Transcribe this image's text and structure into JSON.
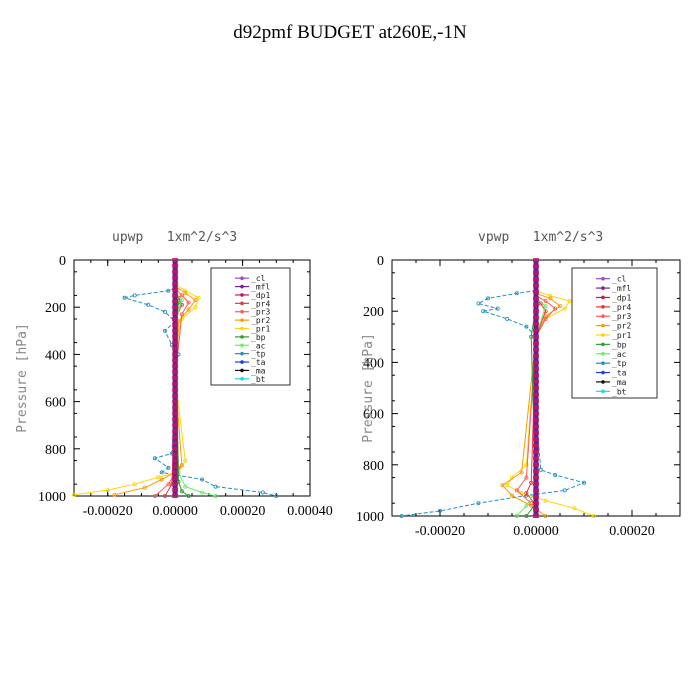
{
  "title": "d92pmf  BUDGET at260E,-1N",
  "legend_labels": [
    "_cl",
    "_mfl",
    "_dp1",
    "_pr4",
    "_pr3",
    "_pr2",
    "_pr1",
    "_bp",
    "_ac",
    "_tp",
    "_ta",
    "_ma",
    "_bt"
  ],
  "series_colors": [
    "#9b4dca",
    "#7b1fa2",
    "#c2185b",
    "#e53935",
    "#ff5a5a",
    "#ff9800",
    "#ffd600",
    "#2e9e2e",
    "#66ee66",
    "#1f8fc0",
    "#1a3fd4",
    "#111111",
    "#19d7e6"
  ],
  "chart_data": [
    {
      "type": "line",
      "title": "upwp   1xm^2/s^3",
      "ylabel": "Pressure [hPa]",
      "xlim": [
        -0.0003,
        0.0004
      ],
      "ylim": [
        0,
        1000
      ],
      "y_inverted": true,
      "xticks": [
        -0.0002,
        0.0,
        0.0002,
        0.0004
      ],
      "xtick_labels": [
        "-0.00020",
        "0.00000",
        "0.00020",
        "0.00040"
      ],
      "yticks": [
        0,
        200,
        400,
        600,
        800,
        1000
      ],
      "ytick_labels": [
        "0",
        "200",
        "400",
        "600",
        "800",
        "1000"
      ],
      "series": [
        {
          "name": "_tp",
          "x": [
            0,
            -2e-05,
            -0.00012,
            -0.00015,
            -8e-05,
            -3e-05,
            0.0,
            -3e-05,
            -1e-05,
            1e-05,
            0.0,
            0.0,
            -1e-05,
            -6e-05,
            -2e-05,
            -4e-05,
            8e-05,
            0.00012,
            0.00026,
            0.0003
          ],
          "y": [
            120,
            130,
            150,
            160,
            190,
            220,
            260,
            300,
            360,
            400,
            450,
            600,
            820,
            840,
            880,
            900,
            930,
            960,
            985,
            1000
          ]
        },
        {
          "name": "_pr1",
          "x": [
            0,
            3e-05,
            7e-05,
            6e-05,
            2e-05,
            1e-05,
            0.0,
            3e-05,
            1e-05,
            -5e-05,
            -0.00012,
            -0.0002,
            -0.0003
          ],
          "y": [
            100,
            130,
            160,
            200,
            250,
            300,
            500,
            850,
            900,
            920,
            950,
            975,
            995
          ]
        },
        {
          "name": "_pr2",
          "x": [
            0,
            3e-05,
            6e-05,
            4e-05,
            1e-05,
            0.0,
            2e-05,
            0.0,
            -4e-05,
            -9e-05,
            -0.00018
          ],
          "y": [
            110,
            140,
            170,
            210,
            260,
            500,
            870,
            900,
            930,
            965,
            995
          ]
        },
        {
          "name": "_pr3",
          "x": [
            0,
            2e-05,
            4e-05,
            2e-05,
            0.0,
            1e-05,
            -2e-05,
            -6e-05
          ],
          "y": [
            120,
            150,
            180,
            230,
            500,
            880,
            950,
            1000
          ]
        },
        {
          "name": "_pr4",
          "x": [
            0,
            1e-05,
            2e-05,
            0.0,
            0.0,
            -1e-05,
            -3e-05
          ],
          "y": [
            130,
            160,
            190,
            250,
            600,
            950,
            1000
          ]
        },
        {
          "name": "_ac",
          "x": [
            0,
            2e-05,
            1e-05,
            0.0,
            1e-05,
            3e-05,
            8e-05,
            0.00012
          ],
          "y": [
            140,
            170,
            210,
            300,
            900,
            960,
            985,
            1000
          ]
        },
        {
          "name": "_bp",
          "x": [
            0,
            1e-05,
            0.0,
            1e-05,
            2e-05,
            4e-05
          ],
          "y": [
            150,
            180,
            300,
            940,
            980,
            1000
          ]
        },
        {
          "name": "_ta",
          "x": [
            0,
            0.0,
            0.0
          ],
          "y": [
            120,
            500,
            1000
          ]
        },
        {
          "name": "_cl",
          "x": [
            0,
            0
          ],
          "y": [
            0,
            1000
          ]
        },
        {
          "name": "_mfl",
          "x": [
            0,
            0
          ],
          "y": [
            0,
            1000
          ]
        },
        {
          "name": "_dp1",
          "x": [
            0,
            0
          ],
          "y": [
            0,
            1000
          ]
        }
      ]
    },
    {
      "type": "line",
      "title": "vpwp   1xm^2/s^3",
      "ylabel": "Pressure [hPa]",
      "xlim": [
        -0.0003,
        0.0003
      ],
      "ylim": [
        0,
        1000
      ],
      "y_inverted": true,
      "xticks": [
        -0.0002,
        0.0,
        0.0002
      ],
      "xtick_labels": [
        "-0.00020",
        "0.00000",
        "0.00020"
      ],
      "yticks": [
        0,
        200,
        400,
        600,
        800,
        1000
      ],
      "ytick_labels": [
        "0",
        "200",
        "400",
        "600",
        "800",
        "1000"
      ],
      "series": [
        {
          "name": "_tp",
          "x": [
            0,
            -4e-05,
            -0.0001,
            -0.00012,
            -8e-05,
            -0.00011,
            -6e-05,
            -2e-05,
            0.0,
            0.0,
            1e-05,
            4e-05,
            0.0001,
            6e-05,
            -2e-05,
            -0.00012,
            -0.0002,
            -0.00028
          ],
          "y": [
            120,
            130,
            150,
            170,
            190,
            200,
            230,
            260,
            300,
            600,
            820,
            840,
            870,
            900,
            920,
            950,
            980,
            1000
          ]
        },
        {
          "name": "_pr1",
          "x": [
            0,
            3e-05,
            7e-05,
            6e-05,
            2e-05,
            0.0,
            -2e-05,
            -5e-05,
            -6e-05,
            -3e-05,
            2e-05,
            8e-05,
            0.00012
          ],
          "y": [
            120,
            140,
            160,
            190,
            230,
            300,
            800,
            850,
            880,
            910,
            940,
            970,
            1000
          ]
        },
        {
          "name": "_pr2",
          "x": [
            0,
            3e-05,
            5e-05,
            2e-05,
            0.0,
            -3e-05,
            -7e-05,
            -5e-05,
            -1e-05,
            2e-05
          ],
          "y": [
            130,
            150,
            180,
            220,
            300,
            830,
            880,
            920,
            960,
            1000
          ]
        },
        {
          "name": "_pr3",
          "x": [
            0,
            2e-05,
            4e-05,
            2e-05,
            0.0,
            -2e-05,
            -4e-05,
            -1e-05
          ],
          "y": [
            140,
            160,
            190,
            230,
            300,
            850,
            900,
            950
          ]
        },
        {
          "name": "_pr4",
          "x": [
            0,
            1e-05,
            2e-05,
            0.0,
            -1e-05,
            -2e-05,
            0.0
          ],
          "y": [
            150,
            170,
            200,
            300,
            870,
            910,
            960
          ]
        },
        {
          "name": "_ac",
          "x": [
            0,
            2e-05,
            0.0,
            0.0,
            -2e-05,
            -4e-05
          ],
          "y": [
            150,
            180,
            300,
            900,
            960,
            1000
          ]
        },
        {
          "name": "_bp",
          "x": [
            0,
            -1e-05,
            0.0,
            -2e-05
          ],
          "y": [
            180,
            300,
            950,
            1000
          ]
        },
        {
          "name": "_ta",
          "x": [
            0,
            0,
            0
          ],
          "y": [
            120,
            500,
            1000
          ]
        },
        {
          "name": "_cl",
          "x": [
            0,
            0
          ],
          "y": [
            0,
            1000
          ]
        },
        {
          "name": "_mfl",
          "x": [
            0,
            0
          ],
          "y": [
            0,
            1000
          ]
        },
        {
          "name": "_dp1",
          "x": [
            0,
            0
          ],
          "y": [
            0,
            1000
          ]
        }
      ]
    }
  ]
}
